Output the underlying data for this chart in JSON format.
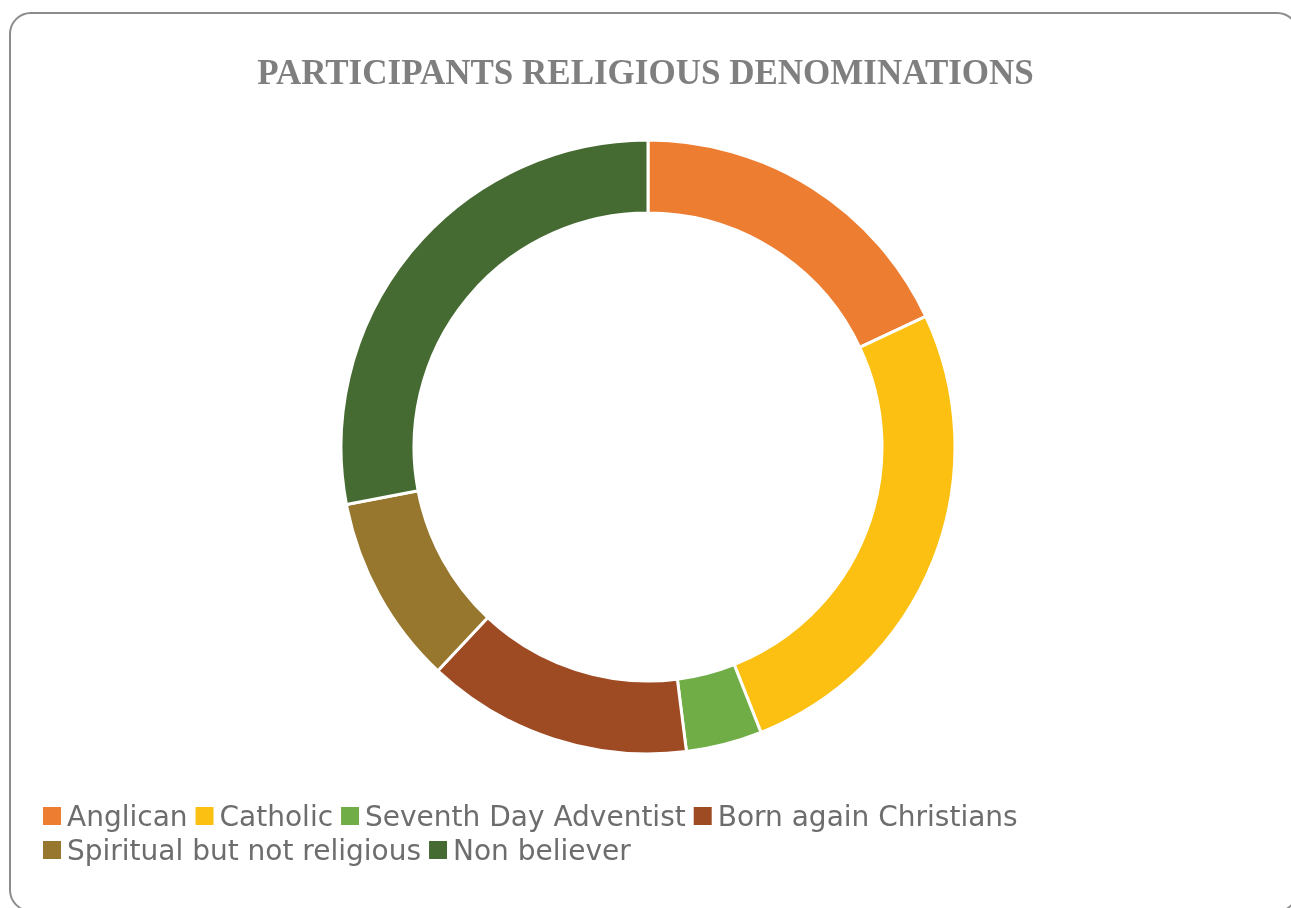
{
  "chart_data": {
    "type": "donut",
    "title": "PARTICIPANTS RELIGIOUS DENOMINATIONS",
    "categories": [
      "Anglican",
      "Catholic",
      "Seventh Day Adventist",
      "Born again Christians",
      "Spiritual but not religious",
      "Non believer"
    ],
    "values": [
      18,
      26,
      4,
      14,
      10,
      28
    ],
    "colors": [
      "#ed7d31",
      "#fbc011",
      "#70ad47",
      "#9e4a22",
      "#97772d",
      "#466b32"
    ],
    "legend": "bottom"
  }
}
